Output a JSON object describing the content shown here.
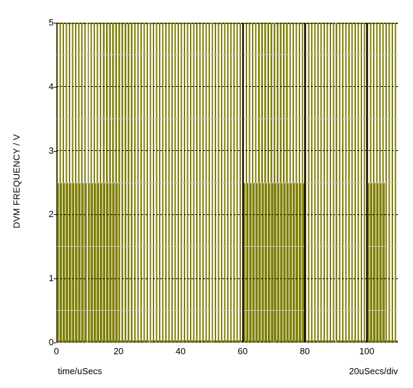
{
  "axis_labels": {
    "ylabel": "DVM FREQUENCY / V",
    "xlabel": "time/uSecs",
    "scale_note": "20uSecs/div"
  },
  "chart_data": {
    "type": "line",
    "subtype": "square-wave-oscilloscope-trace",
    "title": "",
    "xlabel": "time/uSecs",
    "ylabel": "DVM FREQUENCY / V",
    "x_div_label": "20uSecs/div",
    "xlim": [
      0,
      110
    ],
    "ylim": [
      0,
      5
    ],
    "x_ticks": [
      0,
      20,
      40,
      60,
      80,
      100
    ],
    "y_ticks": [
      0,
      1,
      2,
      3,
      4,
      5
    ],
    "x_minor_gridlines": [
      10,
      30,
      50,
      70,
      90
    ],
    "x_major_gridlines_visible": [
      60,
      80,
      100
    ],
    "y_minor_gridlines": [
      0.5,
      1.5,
      2.5,
      3.5,
      4.5
    ],
    "y_major_gridlines_dashed": [
      0,
      1,
      2,
      3,
      4,
      5
    ],
    "grid": true,
    "legend": "none",
    "series": [
      {
        "name": "DVM FREQUENCY",
        "description": "Fast square wave toggling between 0 V and 5 V across the whole 0-110 uSec window; it toggles roughly every 1 uSec so the trace renders as dense full-height vertical stripes",
        "low_v": 0,
        "high_v": 5,
        "approx_toggle_interval_usecs": 1
      }
    ],
    "extra_transition_bands": {
      "description": "Time regions with additional transitions reaching only 2.5 V, which double the stripe density below 2.5 V",
      "level_range_v": [
        0,
        2.5
      ],
      "x_ranges_usecs": [
        [
          0,
          20
        ],
        [
          60,
          80
        ],
        [
          100,
          106.5
        ]
      ]
    },
    "colors": {
      "trace": "#7e7e00",
      "minor_grid": "#c3c3c3",
      "major_grid": "#000000",
      "background": "#ffffff",
      "text": "#000000"
    }
  }
}
